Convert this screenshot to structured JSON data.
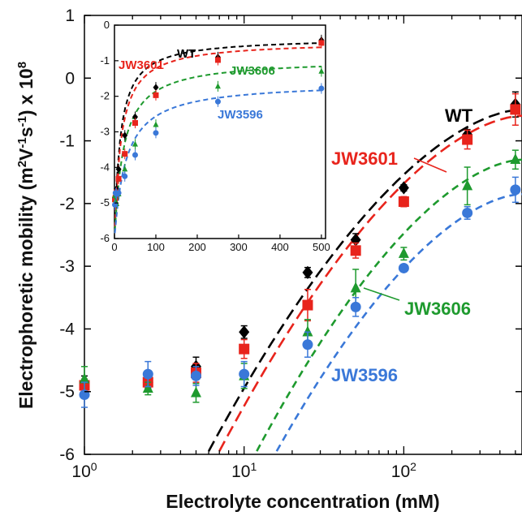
{
  "chart_data": [
    {
      "type": "scatter",
      "xlabel": "Electrolyte concentration (mM)",
      "ylabel_parts": [
        "Electrophoretic mobility (m",
        "2",
        "V",
        "-1",
        "s",
        "-1",
        ") x 10",
        "8"
      ],
      "xscale": "log",
      "xlim": [
        1,
        550
      ],
      "ylim": [
        -6,
        1
      ],
      "x_ticks": [
        {
          "base": "10",
          "exp": "0",
          "value": 1
        },
        {
          "base": "10",
          "exp": "1",
          "value": 10
        },
        {
          "base": "10",
          "exp": "2",
          "value": 100
        }
      ],
      "y_ticks": [
        "1",
        "0",
        "-1",
        "-2",
        "-3",
        "-4",
        "-5",
        "-6"
      ],
      "x": [
        1,
        2.5,
        5,
        10,
        25,
        50,
        100,
        250,
        500
      ],
      "series": [
        {
          "name": "WT",
          "color": "#000000",
          "marker": "diamond",
          "y": [
            -4.85,
            -4.85,
            -4.6,
            -4.05,
            -3.1,
            -2.58,
            -1.75,
            -0.9,
            -0.42
          ],
          "err": [
            0.1,
            0.1,
            0.15,
            0.1,
            0.08,
            0.1,
            0.05,
            0.08,
            0.2
          ],
          "fit_x": [
            6,
            550
          ],
          "fit_y": [
            -5.95,
            -0.5
          ],
          "label_pos": "top-right"
        },
        {
          "name": "JW3601",
          "color": "#e8241c",
          "marker": "square",
          "y": [
            -4.9,
            -4.85,
            -4.7,
            -4.32,
            -3.62,
            -2.75,
            -1.97,
            -0.98,
            -0.5
          ],
          "err": [
            0.1,
            0.08,
            0.15,
            0.15,
            0.25,
            0.12,
            0.08,
            0.15,
            0.25
          ],
          "fit_x": [
            7,
            550
          ],
          "fit_y": [
            -5.95,
            -0.6
          ]
        },
        {
          "name": "JW3606",
          "color": "#1e9a2e",
          "marker": "triangle",
          "y": [
            -4.8,
            -4.95,
            -5.02,
            -4.75,
            -4.05,
            -3.35,
            -2.8,
            -1.72,
            -1.3
          ],
          "err": [
            0.2,
            0.1,
            0.15,
            0.2,
            0.2,
            0.3,
            0.1,
            0.3,
            0.15
          ],
          "fit_x": [
            12,
            550
          ],
          "fit_y": [
            -5.95,
            -1.3
          ]
        },
        {
          "name": "JW3596",
          "color": "#3a78d8",
          "marker": "circle",
          "y": [
            -5.05,
            -4.72,
            -4.75,
            -4.72,
            -4.25,
            -3.65,
            -3.03,
            -2.15,
            -1.78
          ],
          "err": [
            0.2,
            0.2,
            0.15,
            0.2,
            0.2,
            0.15,
            0.05,
            0.1,
            0.2
          ],
          "fit_x": [
            16,
            550
          ],
          "fit_y": [
            -5.95,
            -1.85
          ]
        }
      ]
    },
    {
      "type": "scatter",
      "role": "inset",
      "xscale": "linear",
      "xlim": [
        0,
        510
      ],
      "ylim": [
        -6,
        0
      ],
      "x_ticks": [
        "0",
        "100",
        "200",
        "300",
        "400",
        "500"
      ],
      "y_ticks": [
        "0",
        "-1",
        "-2",
        "-3",
        "-4",
        "-5",
        "-6"
      ],
      "x": [
        1,
        2.5,
        5,
        10,
        25,
        50,
        100,
        250,
        500
      ],
      "series": [
        {
          "name": "WT",
          "color": "#000000",
          "marker": "diamond",
          "y": [
            -4.85,
            -4.85,
            -4.6,
            -4.05,
            -3.1,
            -2.58,
            -1.75,
            -0.9,
            -0.42
          ]
        },
        {
          "name": "JW3601",
          "color": "#e8241c",
          "marker": "square",
          "y": [
            -4.9,
            -4.85,
            -4.7,
            -4.32,
            -3.62,
            -2.75,
            -1.97,
            -0.98,
            -0.5
          ]
        },
        {
          "name": "JW3606",
          "color": "#1e9a2e",
          "marker": "triangle",
          "y": [
            -4.8,
            -4.95,
            -5.02,
            -4.75,
            -4.05,
            -3.35,
            -2.8,
            -1.72,
            -1.3
          ]
        },
        {
          "name": "JW3596",
          "color": "#3a78d8",
          "marker": "circle",
          "y": [
            -5.05,
            -4.72,
            -4.75,
            -4.72,
            -4.25,
            -3.65,
            -3.03,
            -2.15,
            -1.78
          ]
        }
      ]
    }
  ]
}
